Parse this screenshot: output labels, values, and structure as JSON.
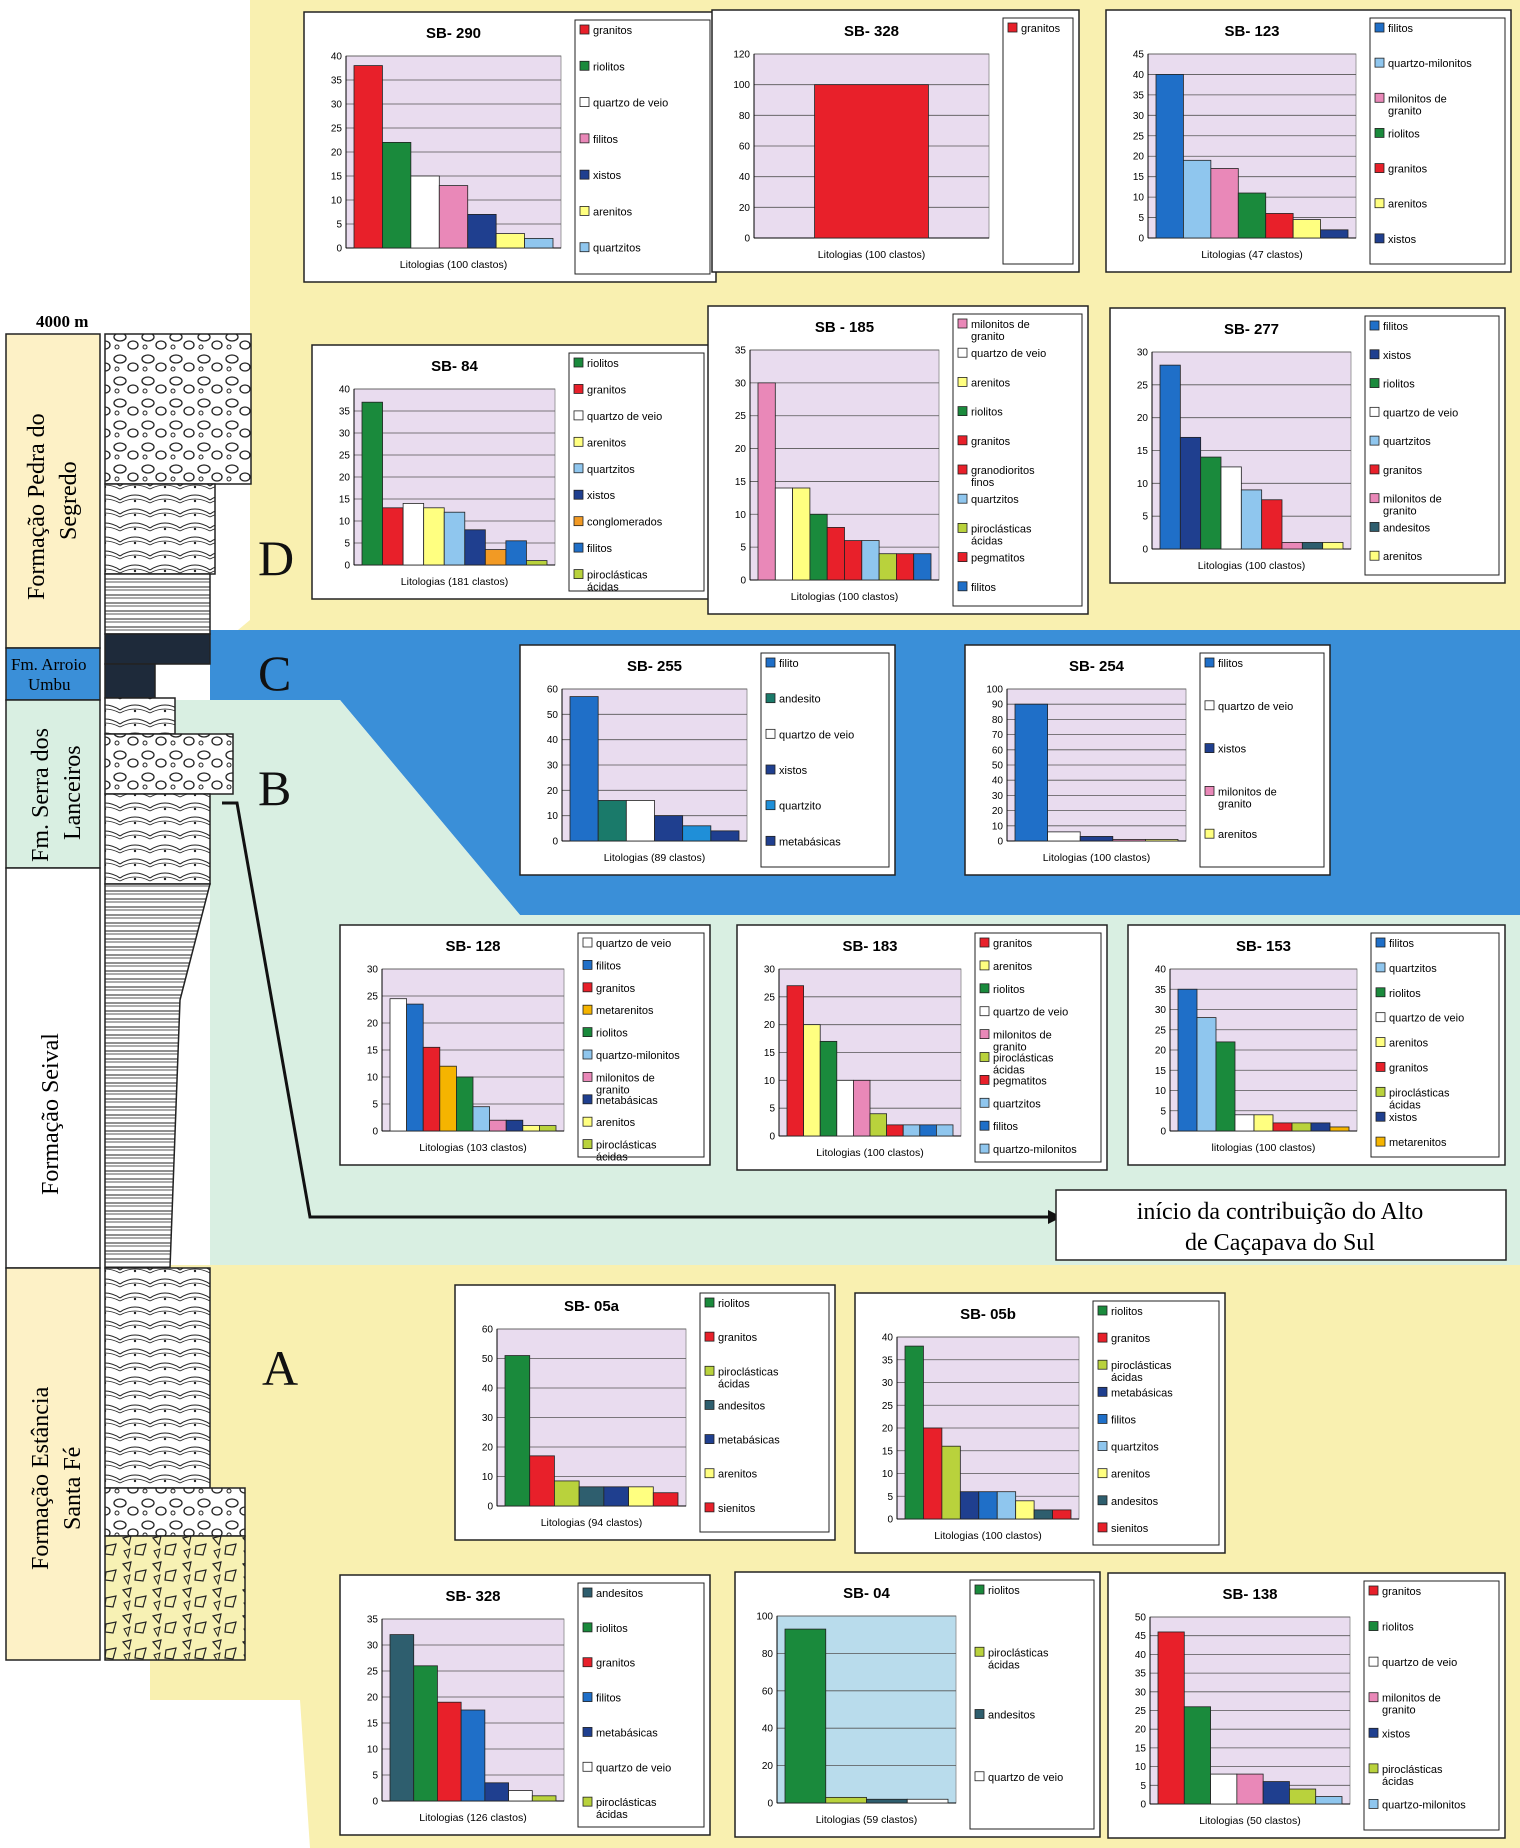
{
  "column": {
    "height_label": "4000 m",
    "formations": [
      {
        "name": "Formação Pedra do Segredo",
        "lines": [
          "Formação Pedra do",
          "Segredo"
        ]
      },
      {
        "name": "Fm. Arroio Umbu",
        "lines": [
          "Fm. Arroio",
          "Umbu"
        ]
      },
      {
        "name": "Fm. Serra dos Lanceiros",
        "lines": [
          "Fm. Serra dos",
          "Lanceiros"
        ]
      },
      {
        "name": "Formação Seival",
        "lines": [
          "Formação Seival"
        ]
      },
      {
        "name": "Formação Estância Santa Fé",
        "lines": [
          "Formação Estância",
          "Santa Fé"
        ]
      }
    ],
    "zone_letters": [
      "D",
      "C",
      "B",
      "A"
    ]
  },
  "note": [
    "início da contribuição do Alto",
    "de Caçapava do Sul"
  ],
  "colors": {
    "zone_yellow": "#f9f0b0",
    "zone_blue": "#3a8fd8",
    "zone_green": "#d9efe2",
    "plot_bg": "#e9dcef",
    "plot_bg_sb04": "#b9dcec",
    "granitos": "#e8202a",
    "riolitos": "#1a8a3c",
    "quartzo_de_veio": "#ffffff",
    "filitos": "#e988b8",
    "filitos_blue": "#1f6fc8",
    "xistos": "#1f3f8f",
    "arenitos": "#ffff80",
    "quartzitos": "#8fc6ee",
    "quartzo_milonitos": "#8fc6ee",
    "milonitos_de_granito": "#e988b8",
    "conglomerados": "#f29a24",
    "piroclasticas_acidas": "#b9d23c",
    "metarenitos": "#f5b400",
    "metabasicas": "#1f3f8f",
    "andesitos": "#2e5e6e",
    "sienitos": "#e8202a",
    "granodioritos_finos": "#e8202a",
    "pegmatitos": "#e8202a"
  },
  "chart_data": [
    {
      "id": "SB-290",
      "type": "bar",
      "title": "SB- 290",
      "xlabel": "Litologias (100 clastos)",
      "ylim": [
        0,
        40
      ],
      "yticks": [
        0,
        5,
        10,
        15,
        20,
        25,
        30,
        35,
        40
      ],
      "legend": [
        "granitos",
        "riolitos",
        "quartzo de veio",
        "filitos",
        "xistos",
        "arenitos",
        "quartzitos"
      ],
      "colors": [
        "#e8202a",
        "#1a8a3c",
        "#ffffff",
        "#e988b8",
        "#1f3f8f",
        "#ffff80",
        "#8fc6ee"
      ],
      "values": [
        38,
        22,
        15,
        13,
        7,
        3,
        2
      ]
    },
    {
      "id": "SB-328-top",
      "type": "bar",
      "title": "SB- 328",
      "xlabel": "Litologias (100 clastos)",
      "ylim": [
        0,
        120
      ],
      "yticks": [
        0,
        20,
        40,
        60,
        80,
        100,
        120
      ],
      "legend": [
        "granitos"
      ],
      "colors": [
        "#e8202a"
      ],
      "values": [
        100
      ],
      "wide": true
    },
    {
      "id": "SB-123",
      "type": "bar",
      "title": "SB- 123",
      "xlabel": "Litologias (47 clastos)",
      "ylim": [
        0,
        45
      ],
      "yticks": [
        0,
        5,
        10,
        15,
        20,
        25,
        30,
        35,
        40,
        45
      ],
      "legend": [
        "filitos",
        "quartzo-milonitos",
        "milonitos de granito",
        "riolitos",
        "granitos",
        "arenitos",
        "xistos"
      ],
      "colors": [
        "#1f6fc8",
        "#8fc6ee",
        "#e988b8",
        "#1a8a3c",
        "#e8202a",
        "#ffff80",
        "#1f3f8f"
      ],
      "values": [
        40,
        19,
        17,
        11,
        6,
        4.5,
        2
      ]
    },
    {
      "id": "SB-84",
      "type": "bar",
      "title": "SB- 84",
      "xlabel": "Litologias (181 clastos)",
      "ylim": [
        0,
        40
      ],
      "yticks": [
        0,
        5,
        10,
        15,
        20,
        25,
        30,
        35,
        40
      ],
      "legend": [
        "riolitos",
        "granitos",
        "quartzo de veio",
        "arenitos",
        "quartzitos",
        "xistos",
        "conglomerados",
        "filitos",
        "piroclásticas ácidas"
      ],
      "colors": [
        "#1a8a3c",
        "#e8202a",
        "#ffffff",
        "#ffff80",
        "#8fc6ee",
        "#1f3f8f",
        "#f29a24",
        "#1f6fc8",
        "#b9d23c"
      ],
      "values": [
        37,
        13,
        14,
        13,
        12,
        8,
        3.5,
        5.5,
        1
      ]
    },
    {
      "id": "SB-185",
      "type": "bar",
      "title": "SB - 185",
      "xlabel": "Litologias (100 clastos)",
      "ylim": [
        0,
        35
      ],
      "yticks": [
        0,
        5,
        10,
        15,
        20,
        25,
        30,
        35
      ],
      "legend": [
        "milonitos de granito",
        "quartzo de veio",
        "arenitos",
        "riolitos",
        "granitos",
        "granodioritos finos",
        "quartzitos",
        "piroclásticas ácidas",
        "pegmatitos",
        "filitos"
      ],
      "colors": [
        "#e988b8",
        "#ffffff",
        "#ffff80",
        "#1a8a3c",
        "#e8202a",
        "#e8202a",
        "#8fc6ee",
        "#b9d23c",
        "#e8202a",
        "#1f6fc8"
      ],
      "values": [
        30,
        14,
        14,
        10,
        8,
        6,
        6,
        4,
        4,
        4
      ]
    },
    {
      "id": "SB-277",
      "type": "bar",
      "title": "SB- 277",
      "xlabel": "Litologias (100 clastos)",
      "ylim": [
        0,
        30
      ],
      "yticks": [
        0,
        5,
        10,
        15,
        20,
        25,
        30
      ],
      "legend": [
        "filitos",
        "xistos",
        "riolitos",
        "quartzo de veio",
        "quartzitos",
        "granitos",
        "milonitos de granito",
        "andesitos",
        "arenitos"
      ],
      "colors": [
        "#1f6fc8",
        "#1f3f8f",
        "#1a8a3c",
        "#ffffff",
        "#8fc6ee",
        "#e8202a",
        "#e988b8",
        "#2e5e6e",
        "#ffff80"
      ],
      "values": [
        28,
        17,
        14,
        12.5,
        9,
        7.5,
        1,
        1,
        1
      ]
    },
    {
      "id": "SB-255",
      "type": "bar",
      "title": "SB- 255",
      "xlabel": "Litologias (89 clastos)",
      "ylim": [
        0,
        60
      ],
      "yticks": [
        0,
        10,
        20,
        30,
        40,
        50,
        60
      ],
      "legend": [
        "filito",
        "andesito",
        "quartzo de veio",
        "xistos",
        "quartzito",
        "metabásicas"
      ],
      "colors": [
        "#1f6fc8",
        "#1a7a6a",
        "#ffffff",
        "#1f3f8f",
        "#1f8fd8",
        "#1f3f8f"
      ],
      "values": [
        57,
        16,
        16,
        10,
        6,
        4
      ]
    },
    {
      "id": "SB-254",
      "type": "bar",
      "title": "SB- 254",
      "xlabel": "Litologias (100 clastos)",
      "ylim": [
        0,
        100
      ],
      "yticks": [
        0,
        10,
        20,
        30,
        40,
        50,
        60,
        70,
        80,
        90,
        100
      ],
      "legend": [
        "filitos",
        "quartzo de veio",
        "xistos",
        "milonitos de granito",
        "arenitos"
      ],
      "colors": [
        "#1f6fc8",
        "#ffffff",
        "#1f3f8f",
        "#e988b8",
        "#ffff80"
      ],
      "values": [
        90,
        6,
        3,
        1,
        1
      ]
    },
    {
      "id": "SB-128",
      "type": "bar",
      "title": "SB- 128",
      "xlabel": "Litologias (103 clastos)",
      "ylim": [
        0,
        30
      ],
      "yticks": [
        0,
        5,
        10,
        15,
        20,
        25,
        30
      ],
      "legend": [
        "quartzo de veio",
        "filitos",
        "granitos",
        "metarenitos",
        "riolitos",
        "quartzo-milonitos",
        "milonitos de granito",
        "metabásicas",
        "arenitos",
        "piroclásticas ácidas"
      ],
      "colors": [
        "#ffffff",
        "#1f6fc8",
        "#e8202a",
        "#f5b400",
        "#1a8a3c",
        "#8fc6ee",
        "#e988b8",
        "#1f3f8f",
        "#ffff80",
        "#b9d23c"
      ],
      "values": [
        24.5,
        23.5,
        15.5,
        12,
        10,
        4.5,
        2,
        2,
        1,
        1
      ]
    },
    {
      "id": "SB-183",
      "type": "bar",
      "title": "SB- 183",
      "xlabel": "Litologias (100 clastos)",
      "ylim": [
        0,
        30
      ],
      "yticks": [
        0,
        5,
        10,
        15,
        20,
        25,
        30
      ],
      "legend": [
        "granitos",
        "arenitos",
        "riolitos",
        "quartzo de veio",
        "milonitos de granito",
        "piroclásticas ácidas",
        "pegmatitos",
        "quartzitos",
        "filitos",
        "quartzo-milonitos"
      ],
      "colors": [
        "#e8202a",
        "#ffff80",
        "#1a8a3c",
        "#ffffff",
        "#e988b8",
        "#b9d23c",
        "#e8202a",
        "#8fc6ee",
        "#1f6fc8",
        "#8fc6ee"
      ],
      "values": [
        27,
        20,
        17,
        10,
        10,
        4,
        2,
        2,
        2,
        2
      ]
    },
    {
      "id": "SB-153",
      "type": "bar",
      "title": "SB- 153",
      "xlabel": "litologias (100 clastos)",
      "ylim": [
        0,
        40
      ],
      "yticks": [
        0,
        5,
        10,
        15,
        20,
        25,
        30,
        35,
        40
      ],
      "legend": [
        "filitos",
        "quartzitos",
        "riolitos",
        "quartzo de veio",
        "arenitos",
        "granitos",
        "piroclásticas ácidas",
        "xistos",
        "metarenitos"
      ],
      "colors": [
        "#1f6fc8",
        "#8fc6ee",
        "#1a8a3c",
        "#ffffff",
        "#ffff80",
        "#e8202a",
        "#b9d23c",
        "#1f3f8f",
        "#f5b400"
      ],
      "values": [
        35,
        28,
        22,
        4,
        4,
        2,
        2,
        2,
        1
      ]
    },
    {
      "id": "SB-05a",
      "type": "bar",
      "title": "SB- 05a",
      "xlabel": "Litologias (94 clastos)",
      "ylim": [
        0,
        60
      ],
      "yticks": [
        0,
        10,
        20,
        30,
        40,
        50,
        60
      ],
      "legend": [
        "riolitos",
        "granitos",
        "piroclásticas ácidas",
        "andesitos",
        "metabásicas",
        "arenitos",
        "sienitos"
      ],
      "colors": [
        "#1a8a3c",
        "#e8202a",
        "#b9d23c",
        "#2e5e6e",
        "#1f3f8f",
        "#ffff80",
        "#e8202a"
      ],
      "values": [
        51,
        17,
        8.5,
        6.5,
        6.5,
        6.5,
        4.5
      ]
    },
    {
      "id": "SB-05b",
      "type": "bar",
      "title": "SB- 05b",
      "xlabel": "Litologias (100 clastos)",
      "ylim": [
        0,
        40
      ],
      "yticks": [
        0,
        5,
        10,
        15,
        20,
        25,
        30,
        35,
        40
      ],
      "legend": [
        "riolitos",
        "granitos",
        "piroclásticas ácidas",
        "metabásicas",
        "filitos",
        "quartzitos",
        "arenitos",
        "andesitos",
        "sienitos"
      ],
      "colors": [
        "#1a8a3c",
        "#e8202a",
        "#b9d23c",
        "#1f3f8f",
        "#1f6fc8",
        "#8fc6ee",
        "#ffff80",
        "#2e5e6e",
        "#e8202a"
      ],
      "values": [
        38,
        20,
        16,
        6,
        6,
        6,
        4,
        2,
        2
      ]
    },
    {
      "id": "SB-328-bottom",
      "type": "bar",
      "title": "SB- 328",
      "xlabel": "Litologias (126 clastos)",
      "ylim": [
        0,
        35
      ],
      "yticks": [
        0,
        5,
        10,
        15,
        20,
        25,
        30,
        35
      ],
      "legend": [
        "andesitos",
        "riolitos",
        "granitos",
        "filitos",
        "metabásicas",
        "quartzo de veio",
        "piroclásticas ácidas"
      ],
      "colors": [
        "#2e5e6e",
        "#1a8a3c",
        "#e8202a",
        "#1f6fc8",
        "#1f3f8f",
        "#ffffff",
        "#b9d23c"
      ],
      "values": [
        32,
        26,
        19,
        17.5,
        3.5,
        2,
        1
      ]
    },
    {
      "id": "SB-04",
      "type": "bar",
      "title": "SB- 04",
      "xlabel": "Litologias (59 clastos)",
      "ylim": [
        0,
        100
      ],
      "yticks": [
        0,
        20,
        40,
        60,
        80,
        100
      ],
      "plot_bg": "#b9dcec",
      "legend": [
        "riolitos",
        "piroclásticas ácidas",
        "andesitos",
        "quartzo de veio"
      ],
      "colors": [
        "#1a8a3c",
        "#b9d23c",
        "#2e5e6e",
        "#ffffff"
      ],
      "values": [
        93,
        3,
        2,
        2
      ]
    },
    {
      "id": "SB-138",
      "type": "bar",
      "title": "SB- 138",
      "xlabel": "Litologias (50 clastos)",
      "ylim": [
        0,
        50
      ],
      "yticks": [
        0,
        5,
        10,
        15,
        20,
        25,
        30,
        35,
        40,
        45,
        50
      ],
      "legend": [
        "granitos",
        "riolitos",
        "quartzo de veio",
        "milonitos de granito",
        "xistos",
        "piroclásticas ácidas",
        "quartzo-milonitos"
      ],
      "colors": [
        "#e8202a",
        "#1a8a3c",
        "#ffffff",
        "#e988b8",
        "#1f3f8f",
        "#b9d23c",
        "#8fc6ee"
      ],
      "values": [
        46,
        26,
        8,
        8,
        6,
        4,
        2
      ]
    }
  ]
}
